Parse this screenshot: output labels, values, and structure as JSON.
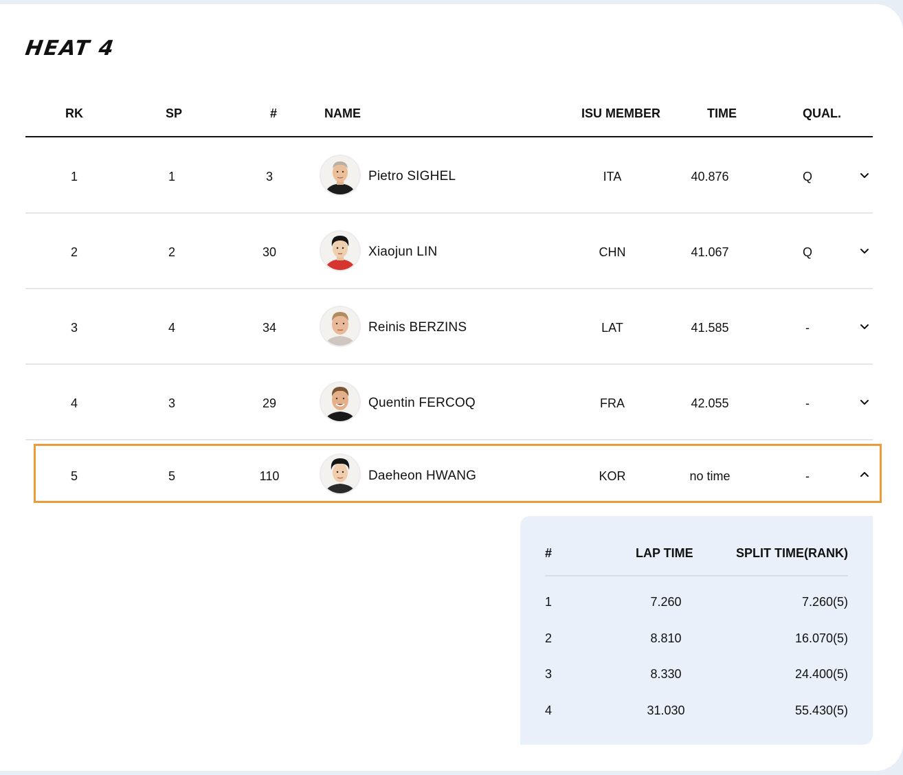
{
  "heat_title": "HEAT 4",
  "columns": {
    "rk": "RK",
    "sp": "SP",
    "num": "#",
    "name": "NAME",
    "isu_member": "ISU MEMBER",
    "time": "TIME",
    "qual": "QUAL."
  },
  "rows": [
    {
      "rk": "1",
      "sp": "1",
      "num": "3",
      "name": "Pietro SIGHEL",
      "nation": "ITA",
      "time": "40.876",
      "qual": "Q",
      "expanded": false
    },
    {
      "rk": "2",
      "sp": "2",
      "num": "30",
      "name": "Xiaojun LIN",
      "nation": "CHN",
      "time": "41.067",
      "qual": "Q",
      "expanded": false
    },
    {
      "rk": "3",
      "sp": "4",
      "num": "34",
      "name": "Reinis BERZINS",
      "nation": "LAT",
      "time": "41.585",
      "qual": "-",
      "expanded": false
    },
    {
      "rk": "4",
      "sp": "3",
      "num": "29",
      "name": "Quentin FERCOQ",
      "nation": "FRA",
      "time": "42.055",
      "qual": "-",
      "expanded": false
    },
    {
      "rk": "5",
      "sp": "5",
      "num": "110",
      "name": "Daeheon HWANG",
      "nation": "KOR",
      "time": "no time",
      "qual": "-",
      "expanded": true
    }
  ],
  "laps": {
    "columns": {
      "num": "#",
      "lap_time": "LAP TIME",
      "split_time": "SPLIT TIME(RANK)"
    },
    "rows": [
      {
        "num": "1",
        "lap_time": "7.260",
        "split_time": "7.260(5)"
      },
      {
        "num": "2",
        "lap_time": "8.810",
        "split_time": "16.070(5)"
      },
      {
        "num": "3",
        "lap_time": "8.330",
        "split_time": "24.400(5)"
      },
      {
        "num": "4",
        "lap_time": "31.030",
        "split_time": "55.430(5)"
      }
    ]
  },
  "colors": {
    "highlight_border": "#ec9a3a",
    "detail_panel_bg": "#e9f0f9"
  },
  "icons": {
    "collapsed": "chevron-down-icon",
    "expanded": "chevron-up-icon",
    "athlete": "athlete-photo"
  }
}
